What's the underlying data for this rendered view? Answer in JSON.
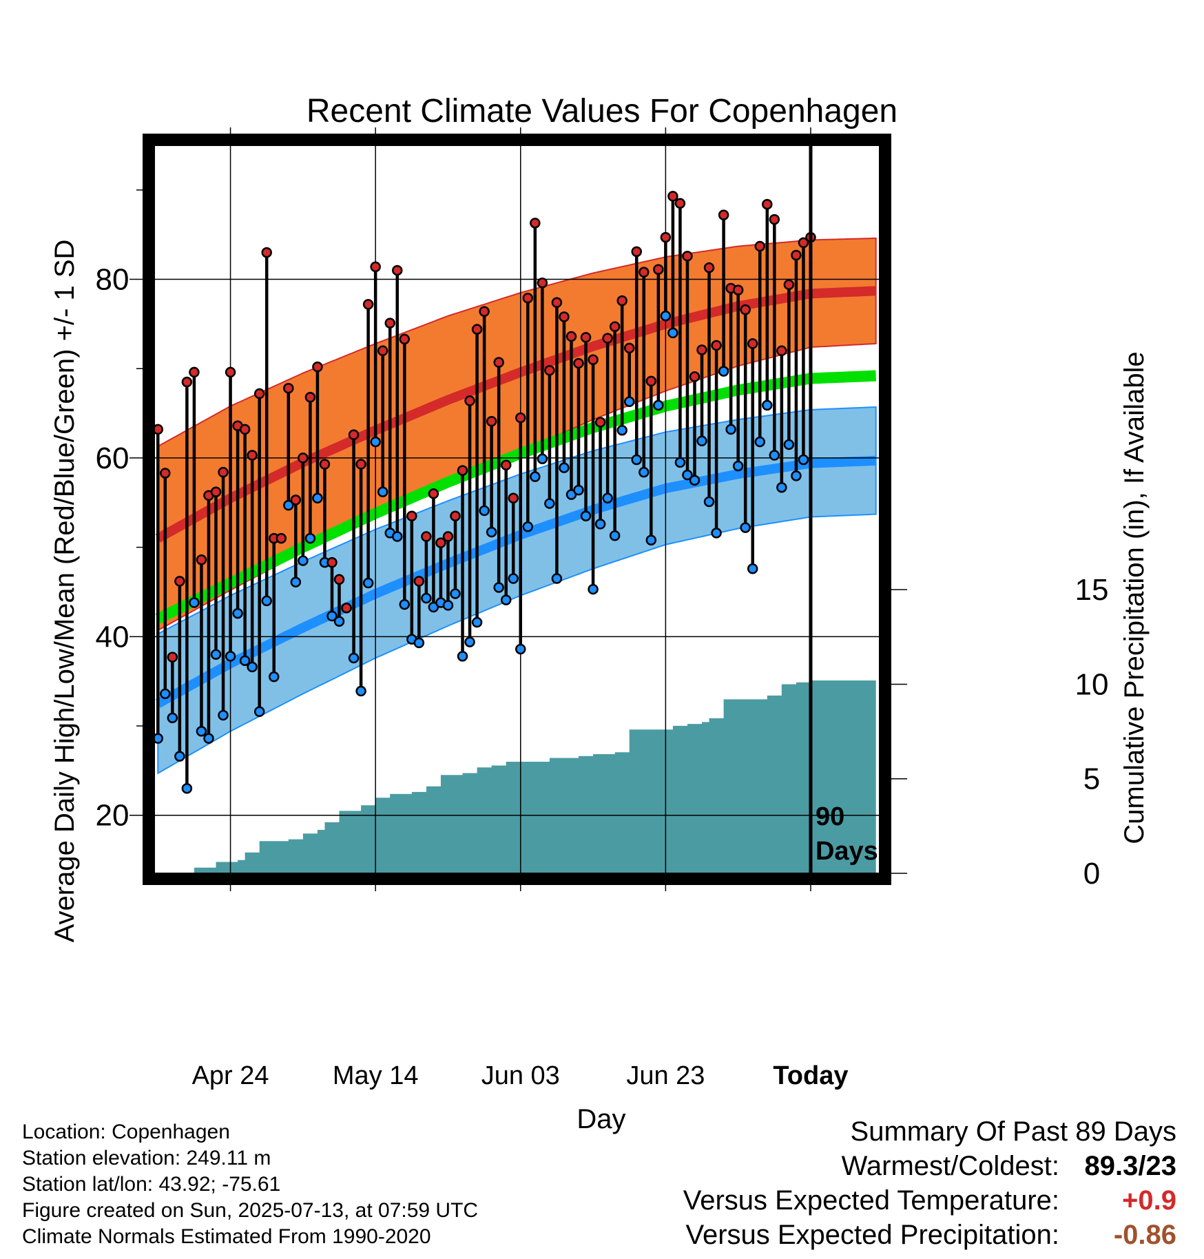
{
  "chart_data": {
    "type": "line",
    "title": "Recent Climate Values For Copenhagen",
    "xlabel": "Day",
    "ylabel_left": "Average Daily High/Low/Mean (Red/Blue/Green) +/- 1 SD",
    "ylabel_right": "Cumulative Precipitation (in), If Available",
    "x_ticks": [
      "Apr 24",
      "May 14",
      "Jun 03",
      "Jun 23",
      "Today"
    ],
    "y_left_ticks": [
      20,
      40,
      60,
      80
    ],
    "y_left_range": [
      13.5,
      95
    ],
    "y_right_ticks": [
      0,
      5,
      10,
      15
    ],
    "y_right_range": [
      0,
      38.5
    ],
    "x_range": [
      -90.5,
      9.5
    ],
    "today_marker_label": "90\nDays",
    "grid": true,
    "colors": {
      "high_band": "#f37b30",
      "high_line": "#d42a2a",
      "low_band": "#80c0e7",
      "low_line": "#1e8fff",
      "mean_line": "#00e000",
      "precip": "#4b9ba3",
      "frame": "#000000"
    },
    "normals": {
      "day_offsets": [
        -90,
        -80,
        -70,
        -60,
        -50,
        -40,
        -30,
        -20,
        -10,
        0,
        9
      ],
      "high_mean": [
        51,
        55.5,
        59.5,
        63.1,
        66.5,
        69.6,
        72.5,
        75,
        77,
        78.4,
        78.7
      ],
      "high_sd": [
        10.3,
        10.3,
        10.0,
        9.7,
        9.4,
        8.9,
        8.2,
        7.5,
        6.7,
        6.0,
        5.9
      ],
      "low_mean": [
        32.5,
        37,
        41,
        44.8,
        48.2,
        51.4,
        54.2,
        56.6,
        58.2,
        59.4,
        59.7
      ],
      "low_sd": [
        7.8,
        7.6,
        7.4,
        7.2,
        7.0,
        6.8,
        6.6,
        6.3,
        6.1,
        6.0,
        6.0
      ],
      "mean_mean": [
        42,
        46,
        50,
        53.8,
        57.3,
        60.5,
        63.4,
        65.8,
        67.6,
        68.9,
        69.2
      ]
    },
    "daily_series": {
      "highs": [
        63.2,
        58.3,
        37.7,
        46.2,
        68.5,
        69.6,
        48.6,
        55.8,
        56.2,
        58.4,
        69.6,
        63.6,
        63.2,
        60.3,
        67.2,
        83.0,
        51.0,
        51.0,
        67.8,
        55.3,
        60.0,
        66.8,
        70.2,
        59.3,
        48.3,
        46.4,
        43.2,
        62.6,
        59.3,
        77.2,
        81.4,
        72.0,
        75.1,
        81.0,
        73.3,
        53.5,
        46.2,
        51.2,
        56.0,
        50.5,
        51.2,
        53.5,
        58.6,
        66.4,
        74.4,
        76.4,
        64.1,
        70.7,
        59.2,
        55.5,
        64.5,
        77.9,
        86.3,
        79.6,
        69.8,
        77.4,
        75.8,
        73.6,
        70.6,
        73.5,
        71.0,
        64.0,
        73.4,
        74.7,
        77.6,
        72.3,
        83.1,
        80.8,
        68.6,
        81.1,
        84.7,
        89.3,
        88.5,
        82.6,
        69.1,
        72.1,
        81.3,
        72.6,
        87.2,
        79.0,
        78.8,
        76.6,
        72.8,
        83.7,
        88.4,
        86.7,
        72.0,
        79.4,
        82.7,
        84.1,
        84.7
      ],
      "lows": [
        28.6,
        33.6,
        30.9,
        26.6,
        23.0,
        43.8,
        29.4,
        28.6,
        38.0,
        31.2,
        37.8,
        42.6,
        37.3,
        36.6,
        31.6,
        44.0,
        35.5,
        null,
        54.7,
        46.1,
        48.5,
        51.0,
        55.5,
        48.3,
        42.3,
        41.7,
        43.2,
        37.6,
        33.9,
        46.0,
        61.8,
        56.2,
        51.6,
        51.2,
        43.6,
        39.7,
        39.3,
        44.3,
        43.3,
        43.8,
        43.5,
        44.8,
        37.8,
        39.4,
        41.6,
        54.1,
        51.7,
        45.5,
        44.1,
        46.5,
        38.6,
        52.3,
        57.9,
        59.9,
        54.9,
        46.5,
        58.9,
        55.9,
        56.4,
        53.5,
        45.3,
        52.6,
        55.5,
        51.3,
        63.1,
        66.3,
        59.8,
        58.4,
        50.8,
        65.9,
        75.9,
        74.0,
        59.5,
        58.1,
        57.5,
        61.9,
        55.1,
        51.6,
        69.7,
        63.2,
        59.1,
        52.2,
        47.6,
        61.8,
        65.9,
        60.3,
        56.7,
        61.5,
        58.0,
        59.8,
        null
      ]
    },
    "precip_cumulative": [
      [
        -90,
        0
      ],
      [
        -86,
        0
      ],
      [
        -85,
        0.3
      ],
      [
        -82,
        0.6
      ],
      [
        -79,
        0.7
      ],
      [
        -78,
        1.1
      ],
      [
        -76,
        1.7
      ],
      [
        -72,
        1.8
      ],
      [
        -70,
        2.1
      ],
      [
        -68,
        2.3
      ],
      [
        -67,
        2.7
      ],
      [
        -65,
        3.3
      ],
      [
        -62,
        3.6
      ],
      [
        -60,
        4.0
      ],
      [
        -58,
        4.2
      ],
      [
        -55,
        4.3
      ],
      [
        -53,
        4.6
      ],
      [
        -51,
        5.2
      ],
      [
        -48,
        5.3
      ],
      [
        -46,
        5.6
      ],
      [
        -44,
        5.7
      ],
      [
        -42,
        5.9
      ],
      [
        -38,
        5.9
      ],
      [
        -36,
        6.1
      ],
      [
        -32,
        6.2
      ],
      [
        -30,
        6.3
      ],
      [
        -27,
        6.4
      ],
      [
        -25,
        7.6
      ],
      [
        -19,
        7.8
      ],
      [
        -17,
        7.9
      ],
      [
        -15,
        8.0
      ],
      [
        -14,
        8.2
      ],
      [
        -12,
        9.2
      ],
      [
        -6,
        9.4
      ],
      [
        -4,
        10.0
      ],
      [
        -2,
        10.1
      ],
      [
        0,
        10.2
      ],
      [
        9,
        10.4
      ]
    ]
  },
  "info": {
    "location": "Location: Copenhagen",
    "elevation": "Station elevation: 249.11 m",
    "latlon": "Station lat/lon: 43.92; -75.61",
    "created": "Figure created on Sun, 2025-07-13, at 07:59 UTC",
    "normals": "Climate Normals Estimated From 1990-2020"
  },
  "summary": {
    "header": "Summary Of Past 89 Days",
    "warmest_label": "Warmest/Coldest:",
    "warmest_value": "89.3/23",
    "temp_label": "Versus Expected Temperature:",
    "temp_value": "+0.9",
    "temp_color": "#d42a2a",
    "precip_label": "Versus Expected Precipitation:",
    "precip_value": "-0.86",
    "precip_color": "#a0522d"
  }
}
